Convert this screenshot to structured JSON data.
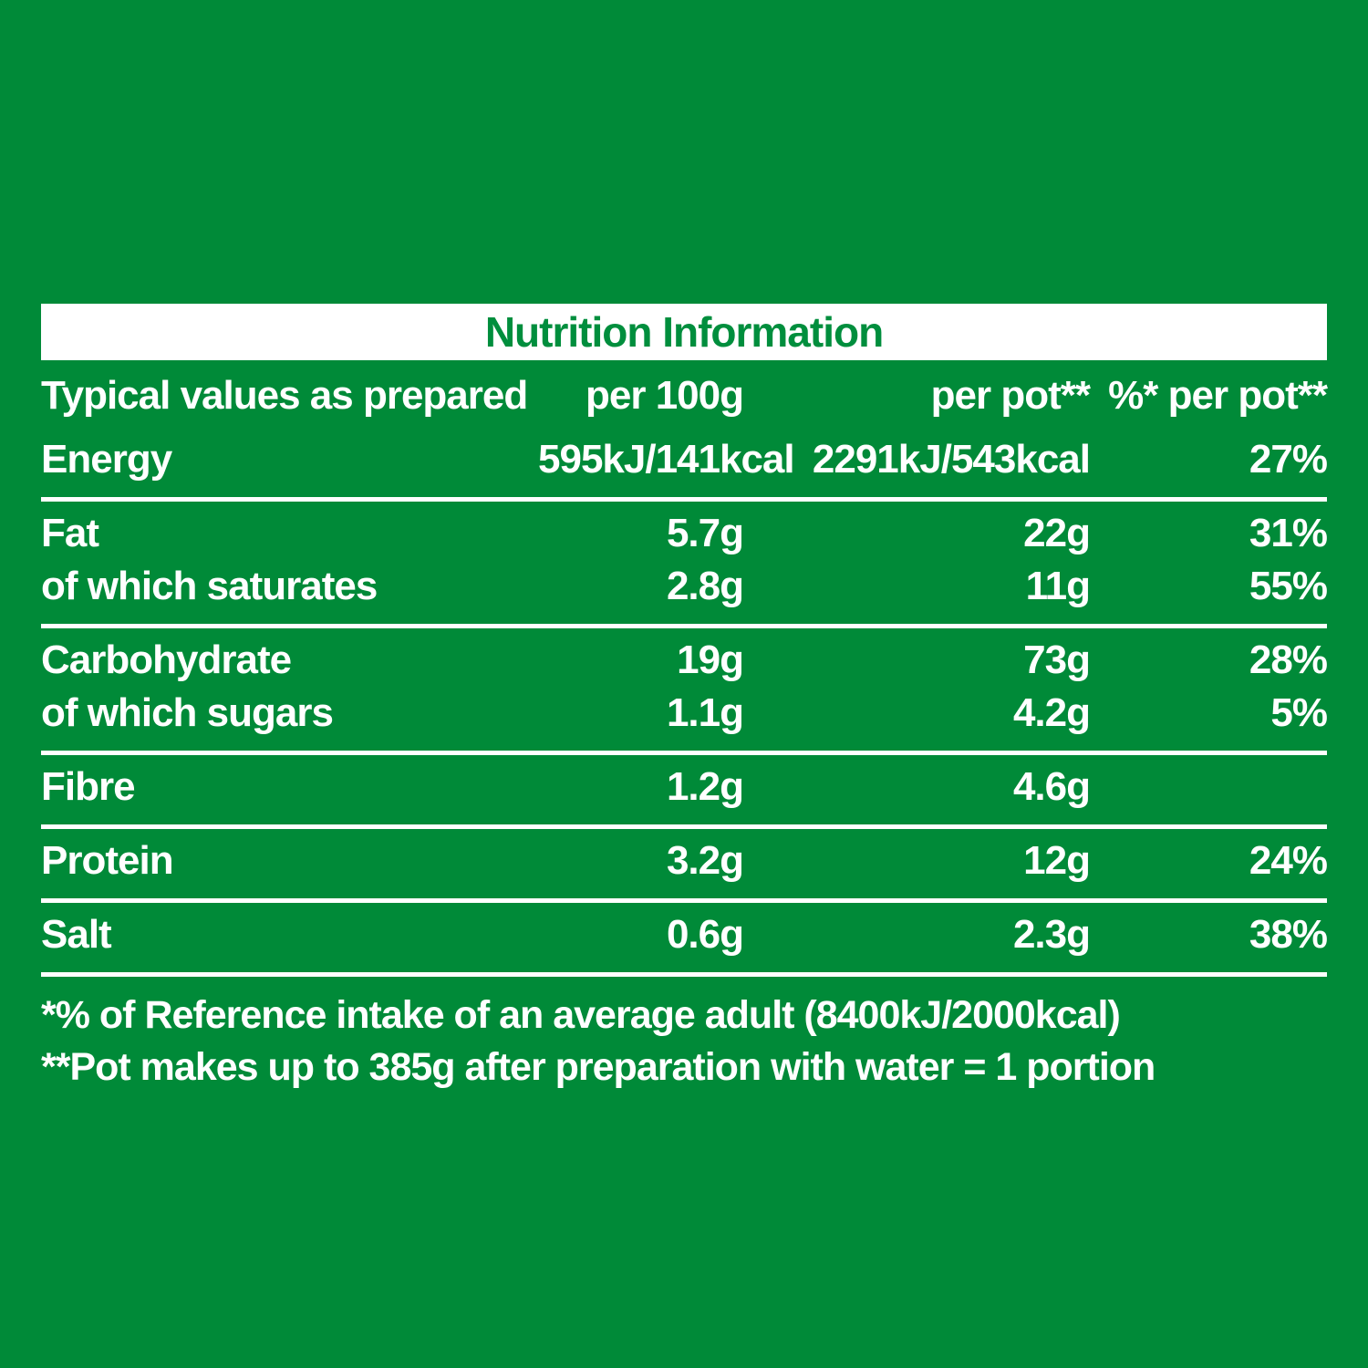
{
  "colors": {
    "background": "#008A38",
    "title_bar": "#FFFFFF",
    "title_text": "#008E3D",
    "table_text": "#FFFFFF",
    "divider": "#FFFFFF"
  },
  "title": "Nutrition Information",
  "columns": {
    "label": "Typical values as prepared",
    "per100g": "per 100g",
    "perPot": "per pot**",
    "pct": "%* per pot**"
  },
  "rows": [
    {
      "label": "Energy",
      "per100g": "595kJ/141kcal",
      "perPot": "2291kJ/543kcal",
      "pct": "27%"
    },
    {
      "label": "Fat",
      "per100g": "5.7g",
      "perPot": "22g",
      "pct": "31%"
    },
    {
      "label": "of which saturates",
      "per100g": "2.8g",
      "perPot": "11g",
      "pct": "55%"
    },
    {
      "label": "Carbohydrate",
      "per100g": "19g",
      "perPot": "73g",
      "pct": "28%"
    },
    {
      "label": "of which sugars",
      "per100g": "1.1g",
      "perPot": "4.2g",
      "pct": "5%"
    },
    {
      "label": "Fibre",
      "per100g": "1.2g",
      "perPot": "4.6g",
      "pct": ""
    },
    {
      "label": "Protein",
      "per100g": "3.2g",
      "perPot": "12g",
      "pct": "24%"
    },
    {
      "label": "Salt",
      "per100g": "0.6g",
      "perPot": "2.3g",
      "pct": "38%"
    }
  ],
  "footnotes": [
    "*% of Reference intake of an average adult (8400kJ/2000kcal)",
    "**Pot makes up to 385g after preparation with water = 1 portion"
  ]
}
